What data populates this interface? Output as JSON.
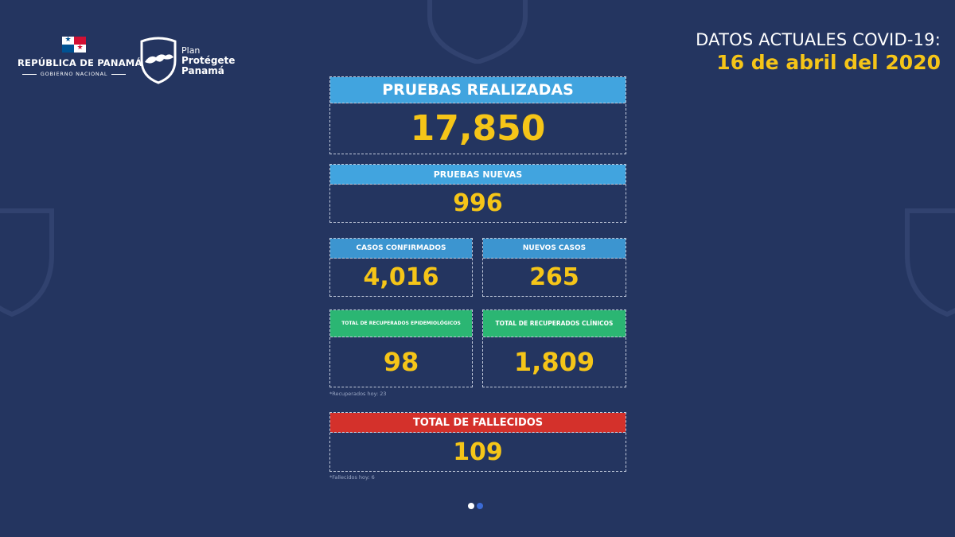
{
  "header": {
    "gov_title": "REPÚBLICA DE PANAMÁ",
    "gov_subtitle": "GOBIERNO NACIONAL",
    "plan_line1": "Plan",
    "plan_line2": "Protégete",
    "plan_line3": "Panamá",
    "datos_title": "DATOS ACTUALES COVID-19:",
    "datos_date": "16 de abril del 2020"
  },
  "stats": {
    "pruebas_realizadas": {
      "label": "PRUEBAS REALIZADAS",
      "value": "17,850"
    },
    "pruebas_nuevas": {
      "label": "PRUEBAS NUEVAS",
      "value": "996"
    },
    "casos_confirmados": {
      "label": "CASOS CONFIRMADOS",
      "value": "4,016"
    },
    "nuevos_casos": {
      "label": "NUEVOS CASOS",
      "value": "265"
    },
    "recuperados_epi": {
      "label": "TOTAL DE RECUPERADOS EPIDEMIOLÓGICOS",
      "value": "98"
    },
    "recuperados_clinicos": {
      "label": "TOTAL DE RECUPERADOS CLÍNICOS",
      "value": "1,809"
    },
    "fallecidos": {
      "label": "TOTAL DE FALLECIDOS",
      "value": "109"
    }
  },
  "notes": {
    "recuperados": "*Recuperados hoy: 23",
    "fallecidos": "*Fallecidos hoy: 6"
  },
  "colors": {
    "background": "#243560",
    "accent_yellow": "#f5c518",
    "label_blue": "#41a4df",
    "label_green": "#2bb673",
    "label_red": "#d4312b"
  },
  "carousel": {
    "pages": 2,
    "active": 1
  }
}
